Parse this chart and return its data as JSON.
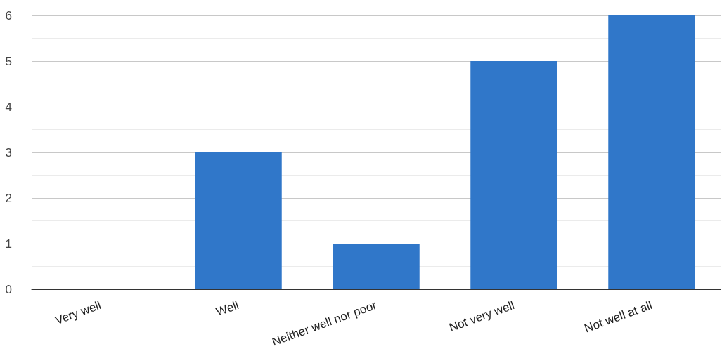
{
  "chart_data": {
    "type": "bar",
    "categories": [
      "Very well",
      "Well",
      "Neither well nor poor",
      "Not very well",
      "Not well at all"
    ],
    "values": [
      0,
      3,
      1,
      5,
      6
    ],
    "color": "#3077c9",
    "ylim": [
      0,
      6
    ],
    "yticks": [
      0,
      1,
      2,
      3,
      4,
      5,
      6
    ],
    "grid": "y"
  }
}
